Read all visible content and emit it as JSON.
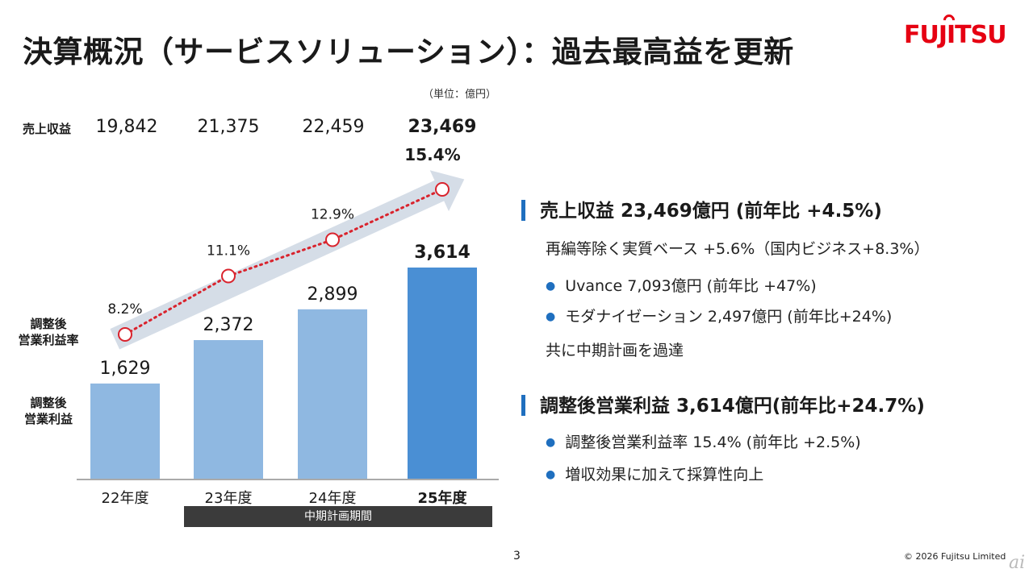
{
  "header": {
    "title": "決算概況（サービスソリューション）：過去最高益を更新",
    "logo": "FUJITSU",
    "unit": "（単位：億円）"
  },
  "revenue_row": {
    "label": "売上収益",
    "values": [
      "19,842",
      "21,375",
      "22,459",
      "23,469"
    ]
  },
  "side_labels": {
    "margin": "調整後\n営業利益率",
    "profit": "調整後\n営業利益"
  },
  "period_band": "中期計画期間",
  "chart_data": {
    "type": "bar",
    "categories": [
      "22年度",
      "23年度",
      "24年度",
      "25年度"
    ],
    "series": [
      {
        "name": "調整後営業利益",
        "values": [
          1629,
          2372,
          2899,
          3614
        ],
        "value_labels": [
          "1,629",
          "2,372",
          "2,899",
          "3,614"
        ]
      },
      {
        "name": "調整後営業利益率",
        "values": [
          8.2,
          11.1,
          12.9,
          15.4
        ],
        "value_labels": [
          "8.2%",
          "11.1%",
          "12.9%",
          "15.4%"
        ]
      }
    ],
    "ylim": [
      0,
      4000
    ],
    "highlight_index": 3,
    "colors": {
      "bar": "#8fb8e1",
      "bar_highlight": "#4a8fd4",
      "line": "#d9232d",
      "arrow": "#d5dde7"
    }
  },
  "right_panel": {
    "h1": "売上収益 23,469億円 (前年比 +4.5%)",
    "t1": "再編等除く実質ベース +5.6%（国内ビジネス+8.3%）",
    "b1": "Uvance 7,093億円 (前年比 +47%)",
    "b2": "モダナイゼーション 2,497億円 (前年比+24%)",
    "t2": "共に中期計画を過達",
    "h2": "調整後営業利益 3,614億円(前年比+24.7%)",
    "b3": "調整後営業利益率 15.4% (前年比 +2.5%)",
    "b4": "増収効果に加えて採算性向上",
    "bullet_icon": "bullet-dot-icon",
    "accent_color": "#1f6fbf"
  },
  "footer": {
    "page": "3",
    "copyright": "© 2026 Fujitsu Limited",
    "watermark": "ai"
  }
}
